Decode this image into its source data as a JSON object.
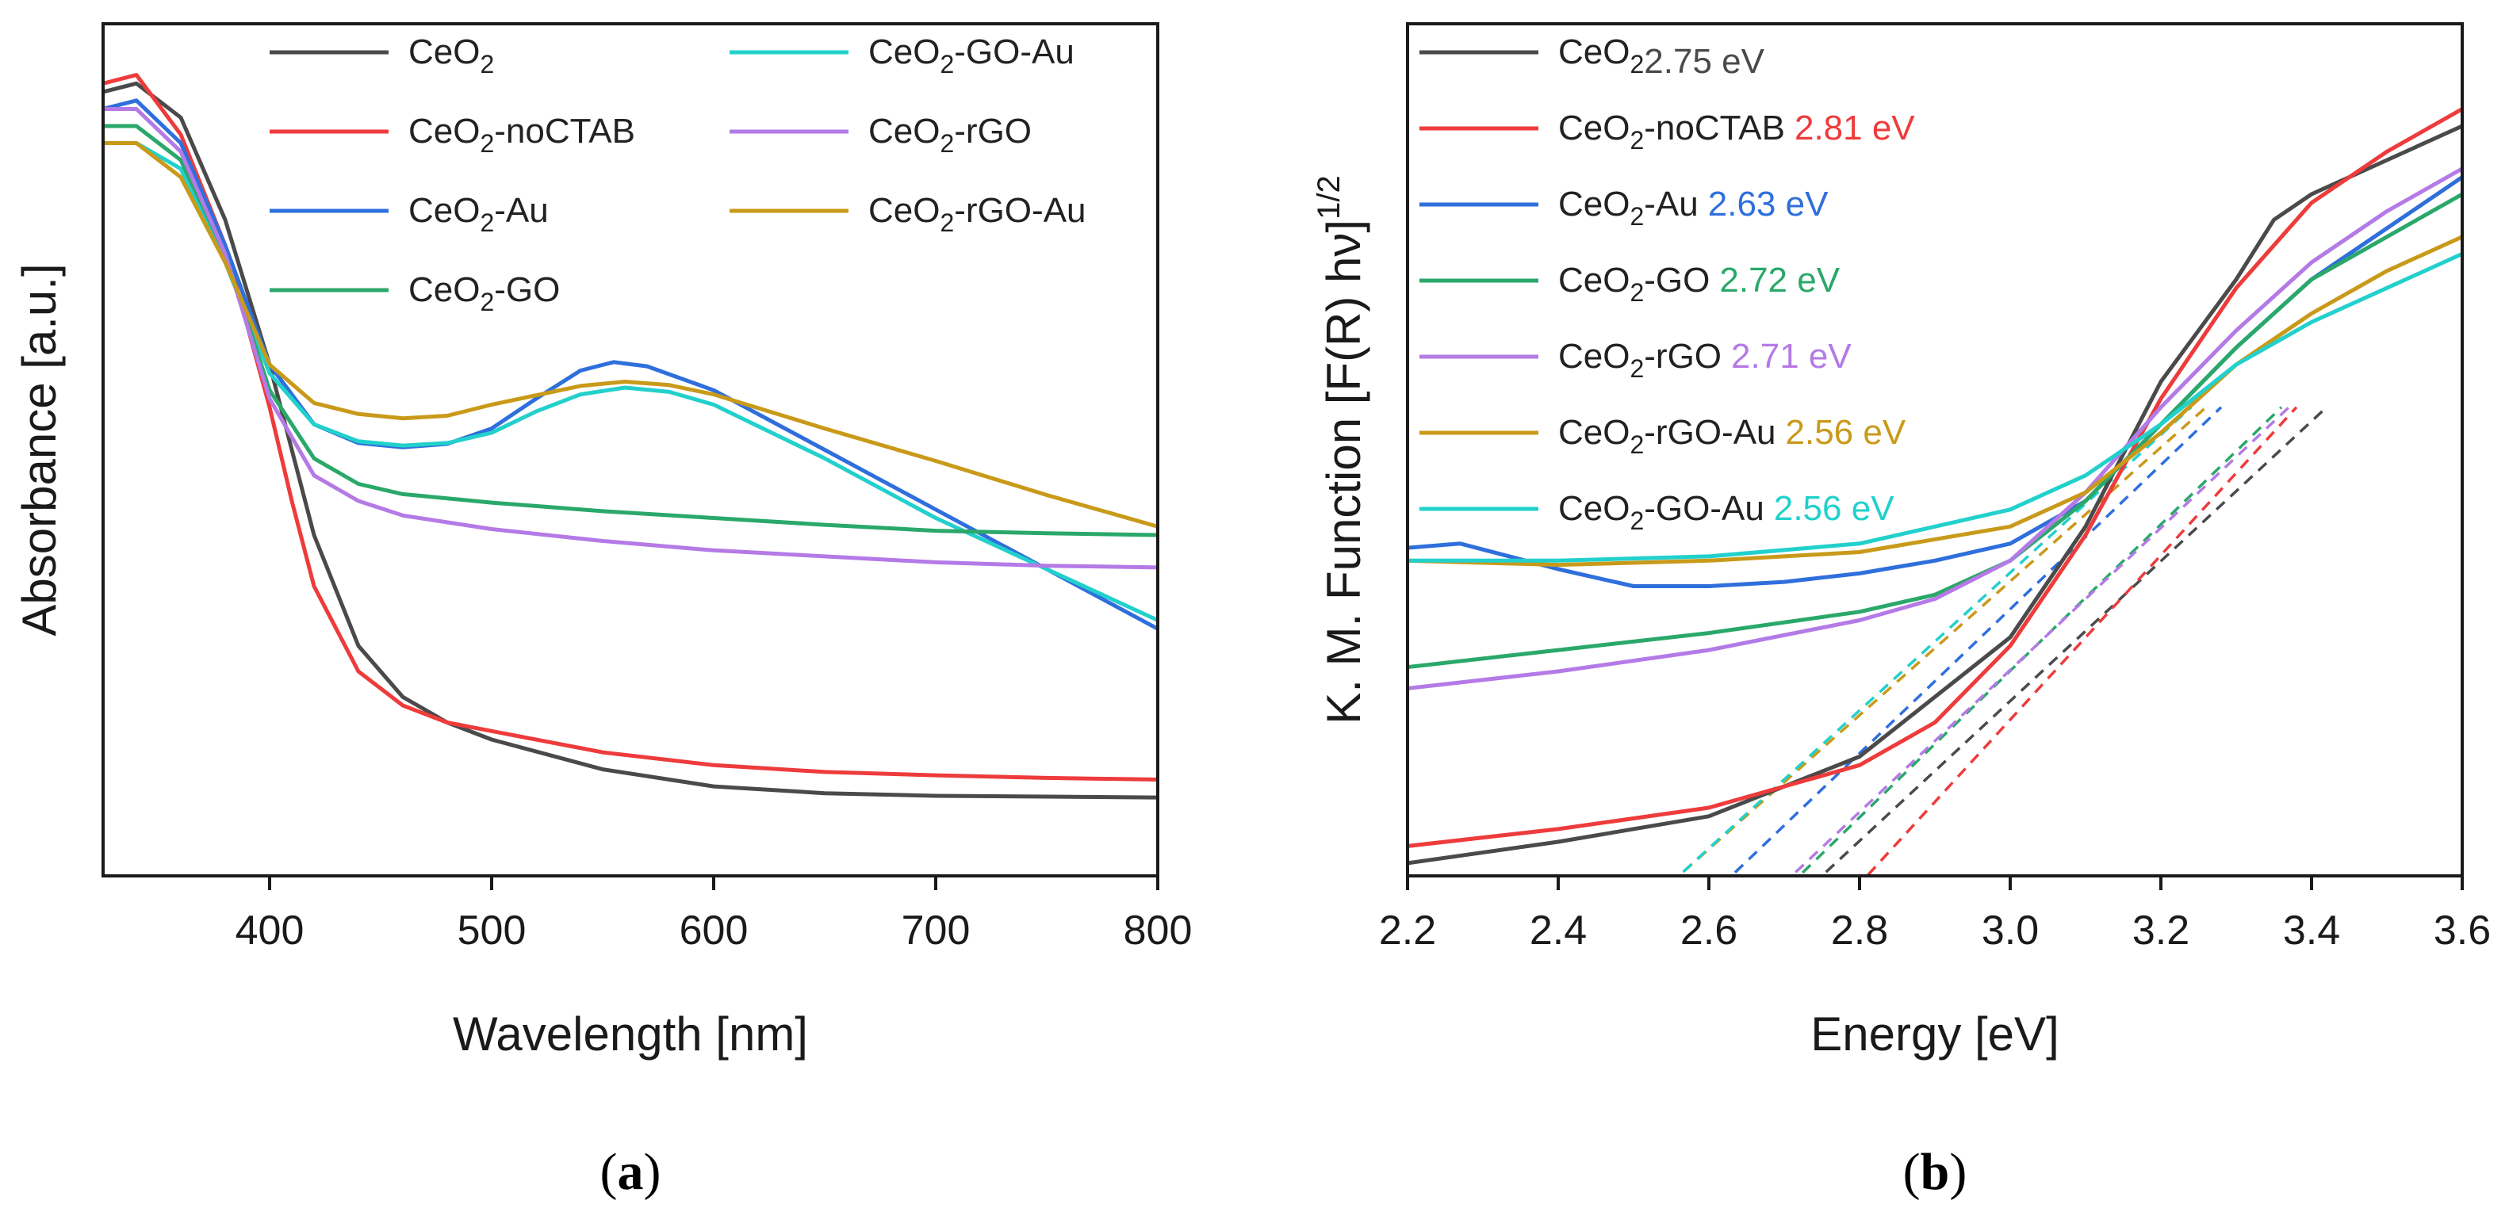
{
  "chart_data": [
    {
      "type": "line",
      "panel_label": "(a)",
      "xlabel": "Wavelength [nm]",
      "ylabel": "Absorbance [a.u.]",
      "xlim": [
        325,
        800
      ],
      "ylim": [
        0,
        1
      ],
      "x_ticks": [
        400,
        500,
        600,
        700,
        800
      ],
      "x_tick_labels": [
        "400",
        "500",
        "600",
        "700",
        "800"
      ],
      "y_ticks_shown": false,
      "grid": false,
      "legend_position": "top",
      "legend_columns": 2,
      "series": [
        {
          "name": "CeO",
          "sub": "2",
          "rest": "",
          "color": "#4a4a4a",
          "x": [
            325,
            340,
            360,
            380,
            400,
            420,
            440,
            460,
            480,
            500,
            550,
            600,
            650,
            700,
            750,
            800
          ],
          "y": [
            0.92,
            0.93,
            0.89,
            0.77,
            0.6,
            0.4,
            0.27,
            0.21,
            0.18,
            0.16,
            0.125,
            0.105,
            0.097,
            0.094,
            0.093,
            0.092
          ]
        },
        {
          "name": "CeO",
          "sub": "2",
          "rest": "-noCTAB",
          "color": "#ee3b3b",
          "x": [
            325,
            340,
            360,
            380,
            400,
            410,
            420,
            440,
            460,
            480,
            500,
            550,
            600,
            650,
            700,
            750,
            800
          ],
          "y": [
            0.93,
            0.94,
            0.87,
            0.74,
            0.55,
            0.44,
            0.34,
            0.24,
            0.2,
            0.18,
            0.17,
            0.145,
            0.13,
            0.122,
            0.118,
            0.115,
            0.113
          ]
        },
        {
          "name": "CeO",
          "sub": "2",
          "rest": "-Au",
          "color": "#2f6fdc",
          "x": [
            325,
            340,
            360,
            380,
            400,
            420,
            440,
            460,
            480,
            500,
            520,
            540,
            555,
            570,
            600,
            650,
            700,
            750,
            800
          ],
          "y": [
            0.9,
            0.91,
            0.86,
            0.74,
            0.6,
            0.53,
            0.508,
            0.503,
            0.507,
            0.525,
            0.56,
            0.593,
            0.603,
            0.598,
            0.57,
            0.5,
            0.43,
            0.36,
            0.29
          ]
        },
        {
          "name": "CeO",
          "sub": "2",
          "rest": "-GO-Au",
          "color": "#22d0cc",
          "x": [
            325,
            340,
            360,
            380,
            400,
            420,
            440,
            460,
            480,
            500,
            520,
            540,
            560,
            580,
            600,
            650,
            700,
            750,
            800
          ],
          "y": [
            0.86,
            0.86,
            0.83,
            0.72,
            0.59,
            0.53,
            0.51,
            0.505,
            0.508,
            0.52,
            0.545,
            0.565,
            0.573,
            0.568,
            0.553,
            0.49,
            0.42,
            0.36,
            0.3
          ]
        },
        {
          "name": "CeO",
          "sub": "2",
          "rest": "-GO",
          "color": "#2aa86a",
          "x": [
            325,
            340,
            360,
            380,
            400,
            420,
            440,
            460,
            500,
            550,
            600,
            650,
            700,
            750,
            800
          ],
          "y": [
            0.88,
            0.88,
            0.84,
            0.73,
            0.57,
            0.49,
            0.46,
            0.448,
            0.438,
            0.428,
            0.42,
            0.412,
            0.405,
            0.402,
            0.4
          ]
        },
        {
          "name": "CeO",
          "sub": "2",
          "rest": "-rGO",
          "color": "#b47ae6",
          "x": [
            325,
            340,
            360,
            380,
            400,
            420,
            440,
            460,
            500,
            550,
            600,
            650,
            700,
            750,
            800
          ],
          "y": [
            0.9,
            0.9,
            0.85,
            0.73,
            0.56,
            0.47,
            0.44,
            0.423,
            0.407,
            0.393,
            0.382,
            0.375,
            0.368,
            0.364,
            0.362
          ]
        },
        {
          "name": "CeO",
          "sub": "2",
          "rest": "-rGO-Au",
          "color": "#c99a1a",
          "x": [
            325,
            340,
            360,
            380,
            400,
            420,
            440,
            460,
            480,
            500,
            540,
            560,
            580,
            600,
            650,
            700,
            750,
            800
          ],
          "y": [
            0.86,
            0.86,
            0.82,
            0.72,
            0.6,
            0.555,
            0.542,
            0.537,
            0.54,
            0.553,
            0.575,
            0.58,
            0.576,
            0.565,
            0.525,
            0.487,
            0.447,
            0.41
          ]
        }
      ]
    },
    {
      "type": "line",
      "panel_label": "(b)",
      "xlabel": "Energy [eV]",
      "ylabel": "K. M. Function [F(R) hν]",
      "ylabel_sup": "1/2",
      "xlim": [
        2.2,
        3.6
      ],
      "ylim": [
        0,
        1
      ],
      "x_ticks": [
        2.2,
        2.4,
        2.6,
        2.8,
        3.0,
        3.2,
        3.4,
        3.6
      ],
      "x_tick_labels": [
        "2.2",
        "2.4",
        "2.6",
        "2.8",
        "3.0",
        "3.2",
        "3.4",
        "3.6"
      ],
      "y_ticks_shown": false,
      "grid": false,
      "legend_position": "top-left",
      "series": [
        {
          "name": "CeO",
          "sub": "2",
          "rest": "",
          "gap": "2.75 eV",
          "color": "#4a4a4a",
          "tangent": [
            2.75,
            3.42
          ],
          "x": [
            2.2,
            2.4,
            2.6,
            2.8,
            3.0,
            3.1,
            3.2,
            3.3,
            3.35,
            3.4,
            3.5,
            3.6
          ],
          "y": [
            0.015,
            0.04,
            0.07,
            0.14,
            0.28,
            0.41,
            0.58,
            0.7,
            0.77,
            0.8,
            0.84,
            0.88
          ]
        },
        {
          "name": "CeO",
          "sub": "2",
          "rest": "-noCTAB",
          "gap": "2.81 eV",
          "color": "#ee3b3b",
          "tangent": [
            2.81,
            3.38
          ],
          "x": [
            2.2,
            2.4,
            2.6,
            2.8,
            2.9,
            3.0,
            3.1,
            3.2,
            3.3,
            3.4,
            3.5,
            3.6
          ],
          "y": [
            0.035,
            0.055,
            0.08,
            0.13,
            0.18,
            0.27,
            0.4,
            0.56,
            0.69,
            0.79,
            0.85,
            0.9
          ]
        },
        {
          "name": "CeO",
          "sub": "2",
          "rest": "-Au",
          "gap": "2.63 eV",
          "color": "#2f6fdc",
          "tangent": [
            2.63,
            3.28
          ],
          "x": [
            2.2,
            2.27,
            2.4,
            2.5,
            2.6,
            2.7,
            2.8,
            2.9,
            3.0,
            3.1,
            3.2,
            3.3,
            3.4,
            3.5,
            3.6
          ],
          "y": [
            0.385,
            0.39,
            0.36,
            0.34,
            0.34,
            0.345,
            0.355,
            0.37,
            0.39,
            0.44,
            0.53,
            0.62,
            0.7,
            0.76,
            0.82
          ]
        },
        {
          "name": "CeO",
          "sub": "2",
          "rest": "-GO",
          "gap": "2.72 eV",
          "color": "#2aa86a",
          "tangent": [
            2.72,
            3.36
          ],
          "x": [
            2.2,
            2.4,
            2.6,
            2.8,
            2.9,
            3.0,
            3.1,
            3.2,
            3.3,
            3.4,
            3.5,
            3.6
          ],
          "y": [
            0.245,
            0.265,
            0.285,
            0.31,
            0.33,
            0.37,
            0.44,
            0.53,
            0.62,
            0.7,
            0.75,
            0.8
          ]
        },
        {
          "name": "CeO",
          "sub": "2",
          "rest": "-rGO",
          "gap": "2.71 eV",
          "color": "#b47ae6",
          "tangent": [
            2.71,
            3.37
          ],
          "x": [
            2.2,
            2.4,
            2.6,
            2.8,
            2.9,
            3.0,
            3.1,
            3.2,
            3.3,
            3.4,
            3.5,
            3.6
          ],
          "y": [
            0.22,
            0.24,
            0.265,
            0.3,
            0.325,
            0.37,
            0.45,
            0.55,
            0.64,
            0.72,
            0.78,
            0.83
          ]
        },
        {
          "name": "CeO",
          "sub": "2",
          "rest": "-rGO-Au",
          "gap": "2.56 eV",
          "color": "#c99a1a",
          "tangent": [
            2.56,
            3.26
          ],
          "x": [
            2.2,
            2.4,
            2.6,
            2.8,
            3.0,
            3.1,
            3.2,
            3.3,
            3.4,
            3.5,
            3.6
          ],
          "y": [
            0.37,
            0.365,
            0.37,
            0.38,
            0.41,
            0.45,
            0.52,
            0.6,
            0.66,
            0.71,
            0.75
          ]
        },
        {
          "name": "CeO",
          "sub": "2",
          "rest": "-GO-Au",
          "gap": "2.56 eV",
          "color": "#22d0cc",
          "tangent": [
            2.56,
            3.24
          ],
          "x": [
            2.2,
            2.4,
            2.6,
            2.8,
            3.0,
            3.1,
            3.2,
            3.3,
            3.4,
            3.5,
            3.6
          ],
          "y": [
            0.37,
            0.37,
            0.375,
            0.39,
            0.43,
            0.47,
            0.53,
            0.6,
            0.65,
            0.69,
            0.73
          ]
        }
      ]
    }
  ]
}
